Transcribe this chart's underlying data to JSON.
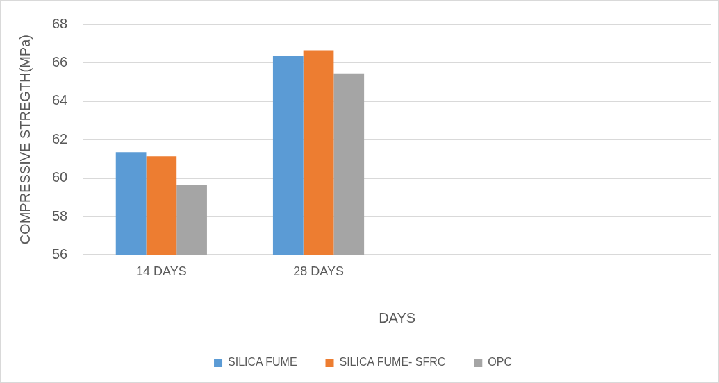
{
  "chart_data": {
    "type": "bar",
    "xlabel": "DAYS",
    "ylabel": "COMPRESSIVE STREGTH(MPa)",
    "categories": [
      "14 DAYS",
      "28 DAYS",
      null,
      null
    ],
    "series": [
      {
        "name": "SILICA FUME",
        "color": "#5b9bd5",
        "values": [
          61.35,
          66.37,
          null,
          null
        ]
      },
      {
        "name": "SILICA FUME- SFRC",
        "color": "#ed7d31",
        "values": [
          61.13,
          66.65,
          null,
          null
        ]
      },
      {
        "name": "OPC",
        "color": "#a5a5a5",
        "values": [
          59.65,
          65.45,
          null,
          null
        ]
      }
    ],
    "ylim": [
      56,
      68
    ],
    "yticks": [
      56,
      58,
      60,
      62,
      64,
      66,
      68
    ],
    "grid": "y",
    "legend": "bottom"
  }
}
